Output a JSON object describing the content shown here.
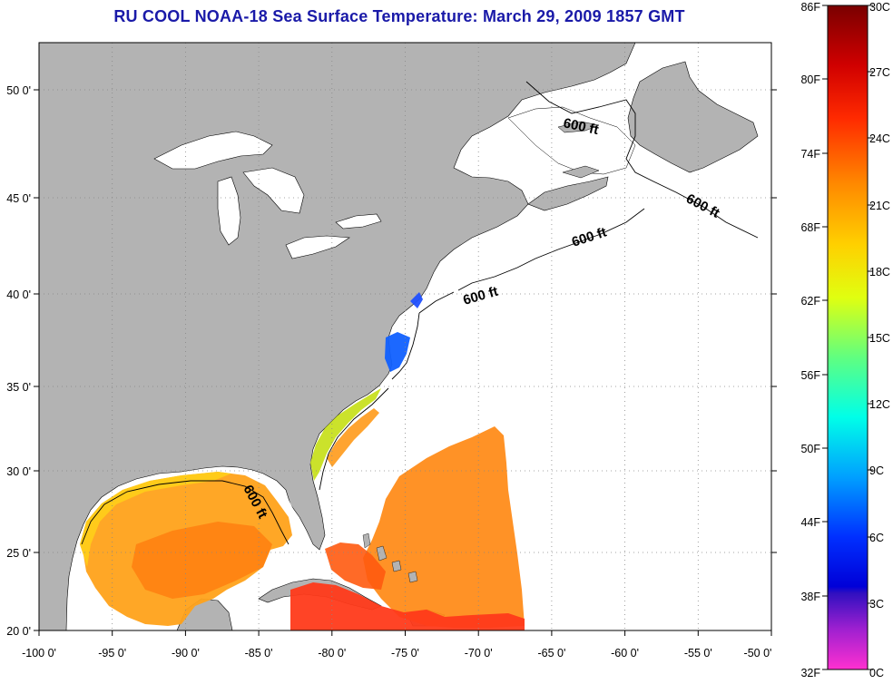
{
  "title": "RU COOL  NOAA-18  Sea Surface Temperature:  March 29, 2009 1857 GMT",
  "map": {
    "lon_ticks": [
      "-100 0'",
      "-95 0'",
      "-90 0'",
      "-85 0'",
      "-80 0'",
      "-75 0'",
      "-70 0'",
      "-65 0'",
      "-60 0'",
      "-55 0'",
      "-50 0'"
    ],
    "lat_ticks": [
      "50 0'",
      "45 0'",
      "40 0'",
      "35 0'",
      "30 0'",
      "25 0'",
      "20 0'"
    ],
    "contour_labels": [
      "600 ft",
      "600 ft",
      "600 ft",
      "600 ft",
      "600 ft"
    ],
    "lon_range": [
      -100,
      -50
    ],
    "lat_range": [
      20,
      52.5
    ]
  },
  "colorbar": {
    "f_labels": [
      "86F",
      "80F",
      "74F",
      "68F",
      "62F",
      "56F",
      "50F",
      "44F",
      "38F",
      "32F"
    ],
    "c_labels": [
      "30C",
      "27C",
      "24C",
      "21C",
      "18C",
      "15C",
      "12C",
      "9C",
      "6C",
      "3C",
      "0C"
    ],
    "colors": [
      "#880000",
      "#ff1010",
      "#ff7a00",
      "#ffd000",
      "#d0ff20",
      "#40ffa0",
      "#00f0ff",
      "#0070ff",
      "#0000e0",
      "#9020d0",
      "#ff20c8"
    ]
  }
}
